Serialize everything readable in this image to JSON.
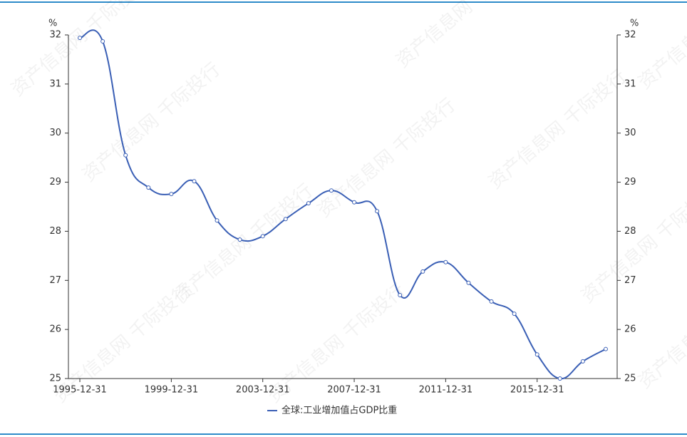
{
  "chart_data": {
    "type": "line",
    "watermark": "资产信息网 千际投行",
    "y_unit": "%",
    "y2_unit": "%",
    "categories": [
      "1995-12-31",
      null,
      null,
      null,
      "1999-12-31",
      null,
      null,
      null,
      "2003-12-31",
      null,
      null,
      null,
      "2007-12-31",
      null,
      null,
      null,
      "2011-12-31",
      null,
      null,
      null,
      "2015-12-31",
      null,
      null,
      null
    ],
    "series": [
      {
        "name": "全球:工业增加值占GDP比重",
        "color": "#3a5fb5",
        "values": [
          31.94,
          31.87,
          29.55,
          28.89,
          28.76,
          29.02,
          28.22,
          27.83,
          27.9,
          28.25,
          28.57,
          28.83,
          28.59,
          28.41,
          26.7,
          27.18,
          27.37,
          26.95,
          26.57,
          26.32,
          25.49,
          25.0,
          25.35,
          25.6
        ]
      }
    ],
    "ylim": [
      25,
      32
    ],
    "yticks": [
      25,
      26,
      27,
      28,
      29,
      30,
      31,
      32
    ],
    "y2lim": [
      25,
      32
    ],
    "y2ticks": [
      25,
      26,
      27,
      28,
      29,
      30,
      31,
      32
    ]
  }
}
